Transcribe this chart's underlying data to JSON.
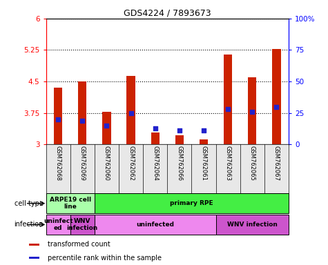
{
  "title": "GDS4224 / 7893673",
  "samples": [
    "GSM762068",
    "GSM762069",
    "GSM762060",
    "GSM762062",
    "GSM762064",
    "GSM762066",
    "GSM762061",
    "GSM762063",
    "GSM762065",
    "GSM762067"
  ],
  "transformed_count": [
    4.35,
    4.5,
    3.78,
    4.63,
    3.28,
    3.22,
    3.12,
    5.15,
    4.6,
    5.28
  ],
  "percentile_rank": [
    20,
    19,
    15,
    25,
    13,
    11,
    11,
    28,
    26,
    30
  ],
  "ylim_left": [
    3.0,
    6.0
  ],
  "ylim_right": [
    0,
    100
  ],
  "yticks_left": [
    3,
    3.75,
    4.5,
    5.25,
    6
  ],
  "ytick_labels_left": [
    "3",
    "3.75",
    "4.5",
    "5.25",
    "6"
  ],
  "yticks_right": [
    0,
    25,
    50,
    75,
    100
  ],
  "ytick_labels_right": [
    "0",
    "25",
    "50",
    "75",
    "100%"
  ],
  "bar_color": "#cc2200",
  "dot_color": "#2222cc",
  "cell_type_labels": [
    {
      "text": "ARPE19 cell\nline",
      "start": 0,
      "end": 2,
      "color": "#aaffaa"
    },
    {
      "text": "primary RPE",
      "start": 2,
      "end": 10,
      "color": "#44ee44"
    }
  ],
  "infection_labels": [
    {
      "text": "uninfect\ned",
      "start": 0,
      "end": 1,
      "color": "#ee88ee"
    },
    {
      "text": "WNV\ninfection",
      "start": 1,
      "end": 2,
      "color": "#cc55cc"
    },
    {
      "text": "uninfected",
      "start": 2,
      "end": 7,
      "color": "#ee88ee"
    },
    {
      "text": "WNV infection",
      "start": 7,
      "end": 10,
      "color": "#cc55cc"
    }
  ],
  "legend_items": [
    {
      "label": "transformed count",
      "color": "#cc2200"
    },
    {
      "label": "percentile rank within the sample",
      "color": "#2222cc"
    }
  ],
  "cell_type_row_label": "cell type",
  "infection_row_label": "infection",
  "bar_width": 0.35,
  "dot_size": 25,
  "background_color": "#e8e8e8"
}
